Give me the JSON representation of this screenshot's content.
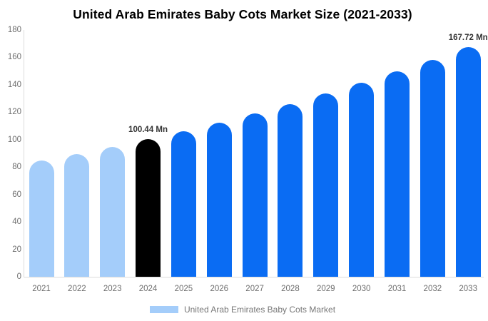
{
  "title": "United Arab Emirates Baby Cots Market Size (2021-2033)",
  "chart_data": {
    "type": "bar",
    "title": "United Arab Emirates Baby Cots Market Size (2021-2033)",
    "categories": [
      "2021",
      "2022",
      "2023",
      "2024",
      "2025",
      "2026",
      "2027",
      "2028",
      "2029",
      "2030",
      "2031",
      "2032",
      "2033"
    ],
    "values": [
      84.7,
      89.7,
      94.9,
      100.44,
      106.3,
      112.6,
      119.2,
      126.1,
      133.5,
      141.4,
      149.6,
      158.4,
      167.72
    ],
    "bar_colors": [
      "#A4CDFA",
      "#A4CDFA",
      "#A4CDFA",
      "#000000",
      "#0A6CF3",
      "#0A6CF3",
      "#0A6CF3",
      "#0A6CF3",
      "#0A6CF3",
      "#0A6CF3",
      "#0A6CF3",
      "#0A6CF3",
      "#0A6CF3"
    ],
    "xlabel": "",
    "ylabel": "",
    "ylim": [
      0,
      180
    ],
    "yticks": [
      0,
      20,
      40,
      60,
      80,
      100,
      120,
      140,
      160,
      180
    ],
    "grid": false,
    "annotations": [
      {
        "category_index": 3,
        "text": "100.44 Mn"
      },
      {
        "category_index": 12,
        "text": "167.72 Mn"
      }
    ],
    "legend": {
      "position": "bottom",
      "label": "United Arab Emirates Baby Cots Market",
      "swatch_color": "#A4CDFA"
    },
    "colors": {
      "historical_bar": "#A4CDFA",
      "highlight_bar": "#000000",
      "forecast_bar": "#0A6CF3",
      "axis_line": "#dcdcdc",
      "tick_text": "#6e6e6e",
      "annotation_text": "#333333",
      "legend_text": "#777777"
    }
  }
}
